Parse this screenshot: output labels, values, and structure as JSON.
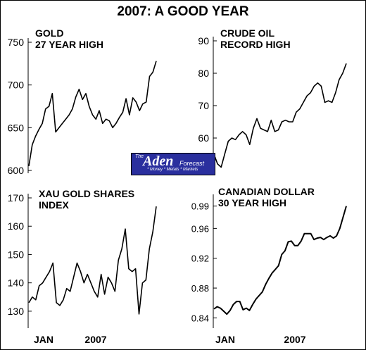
{
  "title": "2007: A GOOD YEAR",
  "logo": {
    "the": "The",
    "name": "Aden",
    "suffix": "Forecast",
    "tagline": "* Money * Metals * Markets"
  },
  "chart_data": [
    {
      "type": "line",
      "title_lines": [
        "GOLD",
        "27 YEAR HIGH"
      ],
      "ylim": [
        600,
        750
      ],
      "yticks": [
        600,
        650,
        700,
        750
      ],
      "ytick_labels": [
        "600",
        "650",
        "700",
        "750"
      ],
      "xticks": [],
      "values": [
        605,
        630,
        640,
        648,
        655,
        672,
        675,
        690,
        645,
        650,
        655,
        660,
        665,
        672,
        686,
        695,
        683,
        690,
        675,
        665,
        660,
        670,
        655,
        660,
        658,
        650,
        655,
        662,
        668,
        684,
        665,
        685,
        680,
        670,
        678,
        680,
        710,
        715,
        728
      ]
    },
    {
      "type": "line",
      "title_lines": [
        "CRUDE OIL",
        "RECORD HIGH"
      ],
      "ylim": [
        50,
        90
      ],
      "yticks": [
        60,
        70,
        80,
        90
      ],
      "ytick_labels": [
        "60",
        "70",
        "80",
        "90"
      ],
      "xticks": [],
      "values": [
        55,
        52,
        51,
        55,
        59,
        60,
        59.5,
        61,
        62,
        61,
        58,
        63,
        66,
        63,
        62.5,
        62,
        65.5,
        62,
        62.5,
        65,
        65.5,
        65,
        65,
        68,
        69,
        71,
        73,
        74,
        76,
        77,
        76,
        71,
        71.5,
        71,
        74,
        78,
        80,
        83
      ]
    },
    {
      "type": "line",
      "title_lines": [
        "XAU GOLD SHARES",
        "INDEX"
      ],
      "ylim": [
        125,
        170
      ],
      "yticks": [
        130,
        140,
        150,
        160,
        170
      ],
      "ytick_labels": [
        "130",
        "140",
        "150",
        "160",
        "170"
      ],
      "xticks": [
        "JAN",
        "2007"
      ],
      "values": [
        133,
        135,
        134,
        139,
        140,
        142,
        144,
        147,
        133,
        132,
        134,
        138,
        137,
        142,
        147,
        144,
        140,
        143,
        140,
        137,
        135,
        143,
        136,
        142,
        140,
        137,
        148,
        152,
        159,
        145,
        144,
        145,
        129,
        140,
        141,
        152,
        158,
        167
      ]
    },
    {
      "type": "line",
      "title_lines": [
        "CANADIAN DOLLAR",
        "30 YEAR HIGH"
      ],
      "ylim": [
        0.83,
        1.0
      ],
      "yticks": [
        0.84,
        0.88,
        0.92,
        0.96,
        0.99
      ],
      "ytick_labels": [
        "0.84",
        "0.88",
        "0.92",
        "0.96",
        "0.99"
      ],
      "xticks": [
        "JAN",
        "2007"
      ],
      "values": [
        0.852,
        0.855,
        0.853,
        0.849,
        0.845,
        0.85,
        0.858,
        0.862,
        0.862,
        0.851,
        0.853,
        0.85,
        0.858,
        0.865,
        0.87,
        0.875,
        0.885,
        0.893,
        0.9,
        0.905,
        0.91,
        0.925,
        0.93,
        0.942,
        0.943,
        0.937,
        0.937,
        0.943,
        0.953,
        0.953,
        0.953,
        0.945,
        0.947,
        0.948,
        0.945,
        0.948,
        0.95,
        0.947,
        0.95,
        0.96,
        0.975,
        0.99
      ]
    }
  ]
}
